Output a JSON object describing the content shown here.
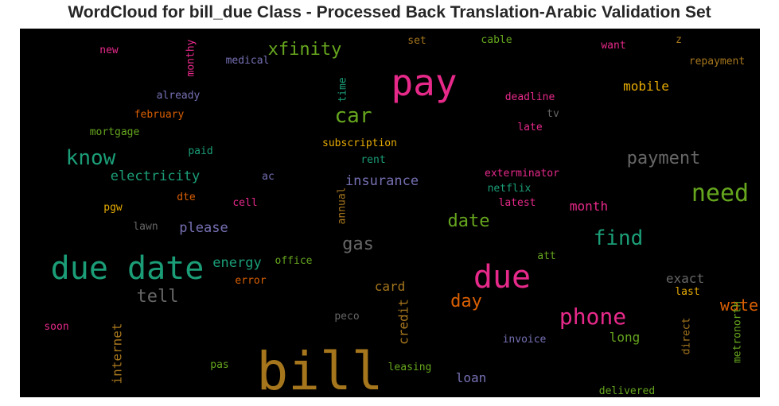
{
  "chart_data": {
    "type": "wordcloud",
    "title": "WordCloud for bill_due Class - Processed Back Translation-Arabic Validation Set",
    "background": "#000000",
    "words": [
      {
        "text": "bill",
        "color": "#a6761d",
        "rank": 1
      },
      {
        "text": "due date",
        "color": "#1b9e77",
        "rank": 2
      },
      {
        "text": "pay",
        "color": "#e7298a",
        "rank": 3
      },
      {
        "text": "due",
        "color": "#e7298a",
        "rank": 4
      },
      {
        "text": "need",
        "color": "#66a61e",
        "rank": 5
      },
      {
        "text": "phone",
        "color": "#e7298a",
        "rank": 6
      },
      {
        "text": "find",
        "color": "#1b9e77",
        "rank": 7
      },
      {
        "text": "car",
        "color": "#66a61e",
        "rank": 8
      },
      {
        "text": "know",
        "color": "#1b9e77",
        "rank": 9
      },
      {
        "text": "xfinity",
        "color": "#66a61e",
        "rank": 10
      },
      {
        "text": "payment",
        "color": "#666666",
        "rank": 11
      },
      {
        "text": "tell",
        "color": "#666666",
        "rank": 12
      },
      {
        "text": "water",
        "color": "#d95f02",
        "rank": 13
      },
      {
        "text": "gas",
        "color": "#666666",
        "rank": 14
      },
      {
        "text": "date",
        "color": "#66a61e",
        "rank": 15
      },
      {
        "text": "day",
        "color": "#d95f02",
        "rank": 16
      },
      {
        "text": "electricity",
        "color": "#1b9e77",
        "rank": 17
      },
      {
        "text": "insurance",
        "color": "#7570b3",
        "rank": 18
      },
      {
        "text": "energy",
        "color": "#1b9e77",
        "rank": 19
      },
      {
        "text": "please",
        "color": "#7570b3",
        "rank": 20
      },
      {
        "text": "mobile",
        "color": "#e6ab02",
        "rank": 21
      },
      {
        "text": "month",
        "color": "#e7298a",
        "rank": 22
      },
      {
        "text": "exact",
        "color": "#666666",
        "rank": 23
      },
      {
        "text": "card",
        "color": "#a6761d",
        "rank": 24
      },
      {
        "text": "credit",
        "color": "#a6761d",
        "rank": 25
      },
      {
        "text": "long",
        "color": "#66a61e",
        "rank": 26
      },
      {
        "text": "loan",
        "color": "#7570b3",
        "rank": 27
      },
      {
        "text": "internet",
        "color": "#a6761d",
        "rank": 28
      },
      {
        "text": "subscription",
        "color": "#e6ab02",
        "rank": 29
      },
      {
        "text": "exterminator",
        "color": "#e7298a",
        "rank": 30
      },
      {
        "text": "deadline",
        "color": "#e7298a",
        "rank": 31
      },
      {
        "text": "medical",
        "color": "#7570b3",
        "rank": 32
      },
      {
        "text": "already",
        "color": "#7570b3",
        "rank": 33
      },
      {
        "text": "february",
        "color": "#d95f02",
        "rank": 34
      },
      {
        "text": "mortgage",
        "color": "#66a61e",
        "rank": 35
      },
      {
        "text": "repayment",
        "color": "#a6761d",
        "rank": 36
      },
      {
        "text": "netflix",
        "color": "#1b9e77",
        "rank": 37
      },
      {
        "text": "latest",
        "color": "#e7298a",
        "rank": 38
      },
      {
        "text": "office",
        "color": "#66a61e",
        "rank": 39
      },
      {
        "text": "error",
        "color": "#d95f02",
        "rank": 40
      },
      {
        "text": "invoice",
        "color": "#7570b3",
        "rank": 41
      },
      {
        "text": "delivered",
        "color": "#66a61e",
        "rank": 42
      },
      {
        "text": "leasing",
        "color": "#66a61e",
        "rank": 43
      },
      {
        "text": "metronorth",
        "color": "#66a61e",
        "rank": 44
      },
      {
        "text": "direct",
        "color": "#a6761d",
        "rank": 45
      },
      {
        "text": "annual",
        "color": "#a6761d",
        "rank": 46
      },
      {
        "text": "monthy",
        "color": "#e7298a",
        "rank": 47
      },
      {
        "text": "time",
        "color": "#1b9e77",
        "rank": 48
      },
      {
        "text": "cable",
        "color": "#66a61e",
        "rank": 49
      },
      {
        "text": "want",
        "color": "#e7298a",
        "rank": 50
      },
      {
        "text": "late",
        "color": "#e7298a",
        "rank": 51
      },
      {
        "text": "rent",
        "color": "#1b9e77",
        "rank": 52
      },
      {
        "text": "paid",
        "color": "#1b9e77",
        "rank": 53
      },
      {
        "text": "cell",
        "color": "#e7298a",
        "rank": 54
      },
      {
        "text": "lawn",
        "color": "#666666",
        "rank": 55
      },
      {
        "text": "peco",
        "color": "#666666",
        "rank": 56
      },
      {
        "text": "pgw",
        "color": "#e6ab02",
        "rank": 57
      },
      {
        "text": "dte",
        "color": "#d95f02",
        "rank": 58
      },
      {
        "text": "new",
        "color": "#e7298a",
        "rank": 59
      },
      {
        "text": "soon",
        "color": "#e7298a",
        "rank": 60
      },
      {
        "text": "pas",
        "color": "#66a61e",
        "rank": 61
      },
      {
        "text": "att",
        "color": "#66a61e",
        "rank": 62
      },
      {
        "text": "last",
        "color": "#e6ab02",
        "rank": 63
      },
      {
        "text": "tv",
        "color": "#666666",
        "rank": 64
      },
      {
        "text": "set",
        "color": "#a6761d",
        "rank": 65
      },
      {
        "text": "ac",
        "color": "#7570b3",
        "rank": 66
      },
      {
        "text": "z",
        "color": "#a6761d",
        "rank": 67
      }
    ]
  }
}
